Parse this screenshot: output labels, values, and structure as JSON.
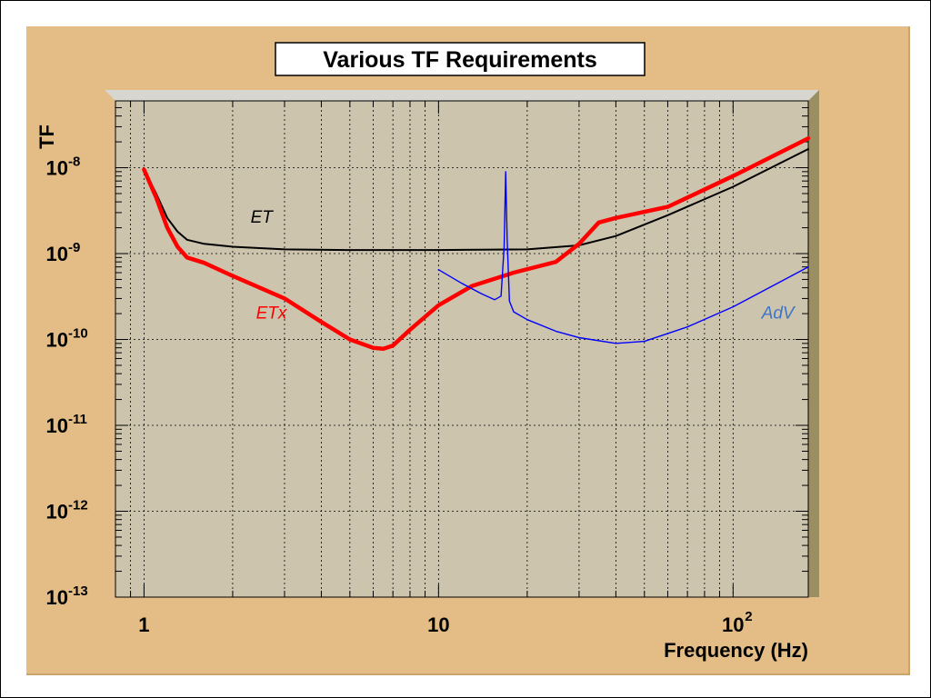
{
  "chart_data": {
    "type": "line",
    "title": "Various TF Requirements",
    "xlabel": "Frequency (Hz)",
    "ylabel": "TF",
    "x_scale": "log",
    "y_scale": "log",
    "xlim": [
      0.8,
      180
    ],
    "ylim": [
      1e-13,
      6e-08
    ],
    "x_ticks": [
      {
        "value": 1,
        "base": "1",
        "exp": ""
      },
      {
        "value": 10,
        "base": "10",
        "exp": ""
      },
      {
        "value": 100,
        "base": "10",
        "exp": "2"
      }
    ],
    "y_ticks": [
      {
        "value": 1e-13,
        "base": "10",
        "exp": "-13"
      },
      {
        "value": 1e-12,
        "base": "10",
        "exp": "-12"
      },
      {
        "value": 1e-11,
        "base": "10",
        "exp": "-11"
      },
      {
        "value": 1e-10,
        "base": "10",
        "exp": "-10"
      },
      {
        "value": 1e-09,
        "base": "10",
        "exp": "-9"
      },
      {
        "value": 1e-08,
        "base": "10",
        "exp": "-8"
      }
    ],
    "grid": true,
    "series": [
      {
        "name": "ET",
        "color": "#000000",
        "x": [
          1,
          1.1,
          1.2,
          1.3,
          1.4,
          1.6,
          2,
          3,
          5,
          10,
          20,
          30,
          40,
          60,
          100,
          180
        ],
        "y": [
          9.5e-09,
          5e-09,
          2.6e-09,
          1.8e-09,
          1.45e-09,
          1.3e-09,
          1.2e-09,
          1.12e-09,
          1.1e-09,
          1.1e-09,
          1.12e-09,
          1.25e-09,
          1.6e-09,
          2.8e-09,
          6e-09,
          1.65e-08
        ]
      },
      {
        "name": "ETx",
        "color": "#ff0000",
        "x": [
          1,
          1.1,
          1.2,
          1.3,
          1.4,
          1.6,
          2,
          3,
          4,
          5,
          6,
          6.5,
          7,
          8,
          10,
          13,
          18,
          25,
          30,
          35,
          40,
          60,
          100,
          180
        ],
        "y": [
          9.5e-09,
          4.5e-09,
          2e-09,
          1.2e-09,
          9e-10,
          7.8e-10,
          5.5e-10,
          3e-10,
          1.6e-10,
          1e-10,
          8e-11,
          7.8e-11,
          8.5e-11,
          1.3e-10,
          2.5e-10,
          4.2e-10,
          6e-10,
          8e-10,
          1.3e-09,
          2.3e-09,
          2.6e-09,
          3.5e-09,
          8e-09,
          2.2e-08
        ]
      },
      {
        "name": "AdV",
        "color": "#0000ff",
        "x": [
          10,
          12,
          14,
          15.5,
          16.3,
          16.7,
          16.9,
          17.1,
          17.4,
          18,
          20,
          25,
          30,
          40,
          50,
          70,
          100,
          180
        ],
        "y": [
          6.5e-10,
          4.5e-10,
          3.4e-10,
          2.9e-10,
          3.2e-10,
          1.2e-09,
          9e-09,
          1.5e-09,
          2.8e-10,
          2.1e-10,
          1.7e-10,
          1.25e-10,
          1.05e-10,
          9e-11,
          9.5e-11,
          1.4e-10,
          2.4e-10,
          7e-10
        ]
      }
    ],
    "annotations": [
      {
        "text": "ET",
        "x": 2.3,
        "y": 2.3e-09,
        "color": "#000000"
      },
      {
        "text": "ETx",
        "x": 2.4,
        "y": 1.75e-10,
        "color": "#ff0000"
      },
      {
        "text": "AdV",
        "x": 125,
        "y": 1.75e-10,
        "color": "#3f74c7"
      }
    ]
  }
}
